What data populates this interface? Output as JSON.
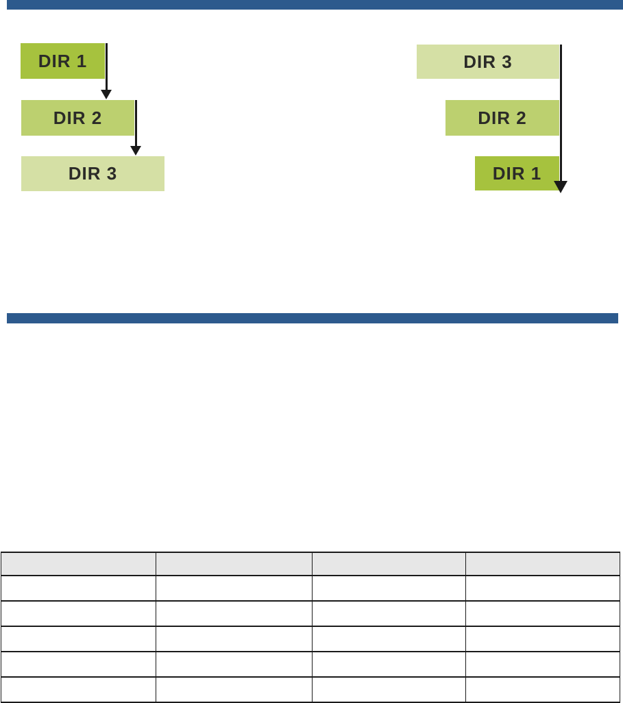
{
  "decorations": {
    "top_bar_color": "#2d5a8d",
    "divider_bar_color": "#2d5a8d",
    "arrow_color": "#1a1a1a",
    "label_text_color": "#2b2b28"
  },
  "diagrams": {
    "left": {
      "flow": "cascade down-right, arrow after each box",
      "boxes": [
        {
          "label": "DIR 1",
          "color": "#a6c23e"
        },
        {
          "label": "DIR 2",
          "color": "#bcd06f"
        },
        {
          "label": "DIR 3",
          "color": "#d5e0a5"
        }
      ]
    },
    "right": {
      "flow": "right-aligned cascade, single long down arrow",
      "boxes": [
        {
          "label": "DIR 3",
          "color": "#d5e0a5"
        },
        {
          "label": "DIR 2",
          "color": "#bcd06f"
        },
        {
          "label": "DIR 1",
          "color": "#a6c23e"
        }
      ]
    }
  },
  "table": {
    "header_fill": "#e7e7e7",
    "column_count": 4,
    "headers": [
      "",
      "",
      "",
      ""
    ],
    "rows": [
      [
        "",
        "",
        "",
        ""
      ],
      [
        "",
        "",
        "",
        ""
      ],
      [
        "",
        "",
        "",
        ""
      ],
      [
        "",
        "",
        "",
        ""
      ],
      [
        "",
        "",
        "",
        ""
      ]
    ]
  }
}
